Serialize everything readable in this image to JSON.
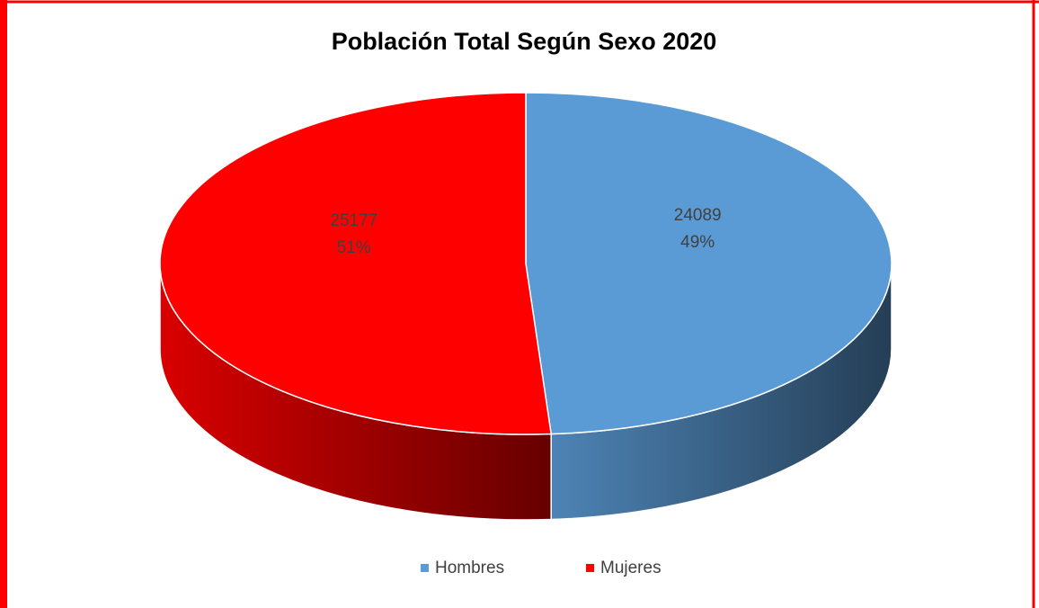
{
  "chart_data": {
    "type": "pie",
    "title": "Población Total Según Sexo 2020",
    "categories": [
      "Hombres",
      "Mujeres"
    ],
    "values": [
      24089,
      25177
    ],
    "percent_labels": [
      "49%",
      "51%"
    ],
    "colors": [
      "#5b9bd5",
      "#ff0000"
    ],
    "legend": "bottom"
  }
}
